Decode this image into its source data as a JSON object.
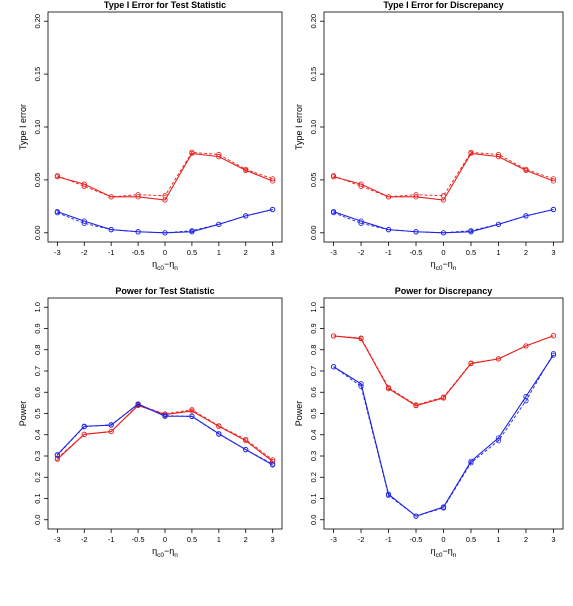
{
  "colors": {
    "red": "#e8201e",
    "blue": "#1d22e6"
  },
  "chart_data": [
    {
      "type": "line",
      "title": "Type I Error for Test Statistic",
      "xlabel": "ηc0−ηn",
      "xlabel_base": "η",
      "xlabel_sub1": "c0",
      "xlabel_op": "−",
      "xlabel_sub2": "n",
      "ylabel": "Type I error",
      "categories": [
        "-3",
        "-2",
        "-1",
        "-0.5",
        "0",
        "0.5",
        "1",
        "2",
        "3"
      ],
      "ylim": [
        0,
        0.2
      ],
      "yticks": [
        "0.00",
        "0.05",
        "0.10",
        "0.15",
        "0.20"
      ],
      "series": [
        {
          "color": "red",
          "dash": false,
          "values": [
            0.053,
            0.046,
            0.034,
            0.034,
            0.031,
            0.075,
            0.072,
            0.059,
            0.049
          ]
        },
        {
          "color": "red",
          "dash": true,
          "values": [
            0.054,
            0.044,
            0.034,
            0.036,
            0.035,
            0.076,
            0.074,
            0.06,
            0.051
          ]
        },
        {
          "color": "blue",
          "dash": false,
          "values": [
            0.02,
            0.011,
            0.003,
            0.001,
            0.0,
            0.001,
            0.008,
            0.016,
            0.022
          ]
        },
        {
          "color": "blue",
          "dash": true,
          "values": [
            0.019,
            0.009,
            0.003,
            0.001,
            0.0,
            0.002,
            0.008,
            0.016,
            0.022
          ]
        }
      ]
    },
    {
      "type": "line",
      "title": "Type I Error for Discrepancy",
      "xlabel": "ηc0−ηn",
      "xlabel_base": "η",
      "xlabel_sub1": "c0",
      "xlabel_op": "−",
      "xlabel_sub2": "n",
      "ylabel": "Type I error",
      "categories": [
        "-3",
        "-2",
        "-1",
        "-0.5",
        "0",
        "0.5",
        "1",
        "2",
        "3"
      ],
      "ylim": [
        0,
        0.2
      ],
      "yticks": [
        "0.00",
        "0.05",
        "0.10",
        "0.15",
        "0.20"
      ],
      "series": [
        {
          "color": "red",
          "dash": false,
          "values": [
            0.053,
            0.046,
            0.034,
            0.034,
            0.031,
            0.075,
            0.072,
            0.059,
            0.049
          ]
        },
        {
          "color": "red",
          "dash": true,
          "values": [
            0.054,
            0.044,
            0.034,
            0.036,
            0.035,
            0.076,
            0.074,
            0.06,
            0.051
          ]
        },
        {
          "color": "blue",
          "dash": false,
          "values": [
            0.02,
            0.011,
            0.003,
            0.001,
            0.0,
            0.001,
            0.008,
            0.016,
            0.022
          ]
        },
        {
          "color": "blue",
          "dash": true,
          "values": [
            0.019,
            0.009,
            0.003,
            0.001,
            0.0,
            0.002,
            0.008,
            0.016,
            0.022
          ]
        }
      ]
    },
    {
      "type": "line",
      "title": "Power for Test Statistic",
      "xlabel": "ηc0−ηn",
      "xlabel_base": "η",
      "xlabel_sub1": "c0",
      "xlabel_op": "−",
      "xlabel_sub2": "n",
      "ylabel": "Power",
      "categories": [
        "-3",
        "-2",
        "-1",
        "-0.5",
        "0",
        "0.5",
        "1",
        "2",
        "3"
      ],
      "ylim": [
        0,
        1.0
      ],
      "yticks": [
        "0.0",
        "0.1",
        "0.2",
        "0.3",
        "0.4",
        "0.5",
        "0.6",
        "0.7",
        "0.8",
        "0.9",
        "1.0"
      ],
      "series": [
        {
          "color": "red",
          "dash": false,
          "values": [
            0.285,
            0.402,
            0.415,
            0.538,
            0.495,
            0.512,
            0.44,
            0.372,
            0.275
          ]
        },
        {
          "color": "red",
          "dash": true,
          "values": [
            0.29,
            0.402,
            0.415,
            0.54,
            0.498,
            0.518,
            0.442,
            0.378,
            0.282
          ]
        },
        {
          "color": "blue",
          "dash": false,
          "values": [
            0.306,
            0.44,
            0.445,
            0.545,
            0.487,
            0.487,
            0.405,
            0.33,
            0.258
          ]
        },
        {
          "color": "blue",
          "dash": true,
          "values": [
            0.304,
            0.438,
            0.447,
            0.543,
            0.49,
            0.486,
            0.403,
            0.33,
            0.262
          ]
        }
      ]
    },
    {
      "type": "line",
      "title": "Power for Discrepancy",
      "xlabel": "ηc0−ηn",
      "xlabel_base": "η",
      "xlabel_sub1": "c0",
      "xlabel_op": "−",
      "xlabel_sub2": "n",
      "ylabel": "Power",
      "categories": [
        "-3",
        "-2",
        "-1",
        "-0.5",
        "0",
        "0.5",
        "1",
        "2",
        "3"
      ],
      "ylim": [
        0,
        1.0
      ],
      "yticks": [
        "0.0",
        "0.1",
        "0.2",
        "0.3",
        "0.4",
        "0.5",
        "0.6",
        "0.7",
        "0.8",
        "0.9",
        "1.0"
      ],
      "series": [
        {
          "color": "red",
          "dash": false,
          "values": [
            0.865,
            0.852,
            0.617,
            0.537,
            0.573,
            0.735,
            0.757,
            0.818,
            0.866
          ]
        },
        {
          "color": "red",
          "dash": true,
          "values": [
            0.865,
            0.855,
            0.622,
            0.54,
            0.577,
            0.737,
            0.757,
            0.818,
            0.866
          ]
        },
        {
          "color": "blue",
          "dash": false,
          "values": [
            0.72,
            0.64,
            0.12,
            0.017,
            0.06,
            0.275,
            0.385,
            0.58,
            0.775
          ]
        },
        {
          "color": "blue",
          "dash": true,
          "values": [
            0.72,
            0.628,
            0.115,
            0.017,
            0.056,
            0.268,
            0.372,
            0.56,
            0.782
          ]
        }
      ]
    }
  ]
}
